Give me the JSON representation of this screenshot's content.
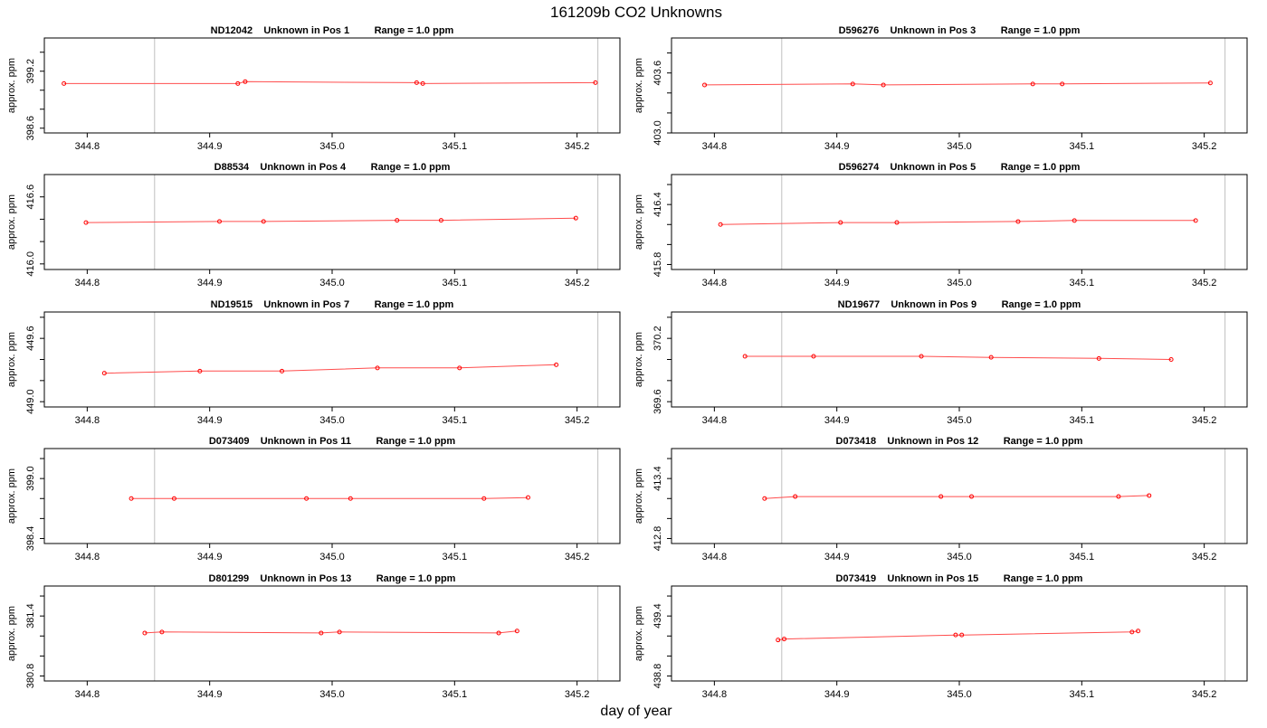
{
  "page": {
    "title": "161209b  CO2 Unknowns",
    "xlabel": "day of year",
    "colors": {
      "series": "#ff0000",
      "line": "#ff4d4d",
      "axis": "#000000",
      "vline": "#bfbfbf"
    }
  },
  "chart_data": [
    {
      "type": "line",
      "title": "ND12042    Unknown in Pos 1         Range = 1.0 ppm",
      "ylabel": "approx. ppm",
      "xlim": [
        344.765,
        345.235
      ],
      "ylim": [
        398.55,
        399.55
      ],
      "xticks": [
        344.8,
        344.9,
        345.0,
        345.1,
        345.2
      ],
      "xtick_labels": [
        "344.8",
        "344.9",
        "345.0",
        "345.1",
        "345.2"
      ],
      "yticks": [
        398.6,
        398.8,
        399.0,
        399.2,
        399.4
      ],
      "ytick_labels": [
        "398.6",
        "",
        "",
        "399.2",
        ""
      ],
      "vlines": [
        344.855,
        345.217
      ],
      "x": [
        344.781,
        344.923,
        344.929,
        345.069,
        345.074,
        345.215
      ],
      "y": [
        399.07,
        399.07,
        399.09,
        399.08,
        399.07,
        399.08
      ]
    },
    {
      "type": "line",
      "title": "D596276    Unknown in Pos 3         Range = 1.0 ppm",
      "ylabel": "approx. ppm",
      "xlim": [
        344.765,
        345.235
      ],
      "ylim": [
        403.0,
        403.95
      ],
      "xticks": [
        344.8,
        344.9,
        345.0,
        345.1,
        345.2
      ],
      "xtick_labels": [
        "344.8",
        "344.9",
        "345.0",
        "345.1",
        "345.2"
      ],
      "yticks": [
        403.0,
        403.2,
        403.4,
        403.6,
        403.8
      ],
      "ytick_labels": [
        "403.0",
        "",
        "",
        "403.6",
        ""
      ],
      "vlines": [
        344.855,
        345.217
      ],
      "x": [
        344.792,
        344.913,
        344.938,
        345.06,
        345.084,
        345.205
      ],
      "y": [
        403.48,
        403.49,
        403.48,
        403.49,
        403.49,
        403.5
      ]
    },
    {
      "type": "line",
      "title": "D88534    Unknown in Pos 4         Range = 1.0 ppm",
      "ylabel": "approx. ppm",
      "xlim": [
        344.765,
        345.235
      ],
      "ylim": [
        415.95,
        416.8
      ],
      "xticks": [
        344.8,
        344.9,
        345.0,
        345.1,
        345.2
      ],
      "xtick_labels": [
        "344.8",
        "344.9",
        "345.0",
        "345.1",
        "345.2"
      ],
      "yticks": [
        416.0,
        416.2,
        416.4,
        416.6
      ],
      "ytick_labels": [
        "416.0",
        "",
        "",
        "416.6"
      ],
      "vlines": [
        344.855,
        345.217
      ],
      "x": [
        344.799,
        344.908,
        344.944,
        345.053,
        345.089,
        345.199
      ],
      "y": [
        416.37,
        416.38,
        416.38,
        416.39,
        416.39,
        416.41
      ]
    },
    {
      "type": "line",
      "title": "D596274    Unknown in Pos 5         Range = 1.0 ppm",
      "ylabel": "approx. ppm",
      "xlim": [
        344.765,
        345.235
      ],
      "ylim": [
        415.75,
        416.7
      ],
      "xticks": [
        344.8,
        344.9,
        345.0,
        345.1,
        345.2
      ],
      "xtick_labels": [
        "344.8",
        "344.9",
        "345.0",
        "345.1",
        "345.2"
      ],
      "yticks": [
        415.8,
        416.0,
        416.2,
        416.4,
        416.6
      ],
      "ytick_labels": [
        "415.8",
        "",
        "",
        "416.4",
        ""
      ],
      "vlines": [
        344.855,
        345.217
      ],
      "x": [
        344.805,
        344.903,
        344.949,
        345.048,
        345.094,
        345.193
      ],
      "y": [
        416.2,
        416.22,
        416.22,
        416.23,
        416.24,
        416.24
      ]
    },
    {
      "type": "line",
      "title": "ND19515    Unknown in Pos 7         Range = 1.0 ppm",
      "ylabel": "approx. ppm",
      "xlim": [
        344.765,
        345.235
      ],
      "ylim": [
        448.95,
        449.85
      ],
      "xticks": [
        344.8,
        344.9,
        345.0,
        345.1,
        345.2
      ],
      "xtick_labels": [
        "344.8",
        "344.9",
        "345.0",
        "345.1",
        "345.2"
      ],
      "yticks": [
        449.0,
        449.2,
        449.4,
        449.6,
        449.8
      ],
      "ytick_labels": [
        "449.0",
        "",
        "",
        "449.6",
        ""
      ],
      "vlines": [
        344.855,
        345.217
      ],
      "x": [
        344.814,
        344.892,
        344.959,
        345.037,
        345.104,
        345.183
      ],
      "y": [
        449.27,
        449.29,
        449.29,
        449.32,
        449.32,
        449.35
      ]
    },
    {
      "type": "line",
      "title": "ND19677    Unknown in Pos 9         Range = 1.0 ppm",
      "ylabel": "approx. ppm",
      "xlim": [
        344.765,
        345.235
      ],
      "ylim": [
        369.55,
        370.45
      ],
      "xticks": [
        344.8,
        344.9,
        345.0,
        345.1,
        345.2
      ],
      "xtick_labels": [
        "344.8",
        "344.9",
        "345.0",
        "345.1",
        "345.2"
      ],
      "yticks": [
        369.6,
        369.8,
        370.0,
        370.2,
        370.4
      ],
      "ytick_labels": [
        "369.6",
        "",
        "",
        "370.2",
        ""
      ],
      "vlines": [
        344.855,
        345.217
      ],
      "x": [
        344.825,
        344.881,
        344.969,
        345.026,
        345.114,
        345.173
      ],
      "y": [
        370.03,
        370.03,
        370.03,
        370.02,
        370.01,
        370.0
      ]
    },
    {
      "type": "line",
      "title": "D073409    Unknown in Pos 11         Range = 1.0 ppm",
      "ylabel": "approx. ppm",
      "xlim": [
        344.765,
        345.235
      ],
      "ylim": [
        398.35,
        399.3
      ],
      "xticks": [
        344.8,
        344.9,
        345.0,
        345.1,
        345.2
      ],
      "xtick_labels": [
        "344.8",
        "344.9",
        "345.0",
        "345.1",
        "345.2"
      ],
      "yticks": [
        398.4,
        398.6,
        398.8,
        399.0,
        399.2
      ],
      "ytick_labels": [
        "398.4",
        "",
        "",
        "399.0",
        ""
      ],
      "vlines": [
        344.855,
        345.217
      ],
      "x": [
        344.836,
        344.871,
        344.979,
        345.015,
        345.124,
        345.16
      ],
      "y": [
        398.8,
        398.8,
        398.8,
        398.8,
        398.8,
        398.81
      ]
    },
    {
      "type": "line",
      "title": "D073418    Unknown in Pos 12         Range = 1.0 ppm",
      "ylabel": "approx. ppm",
      "xlim": [
        344.765,
        345.235
      ],
      "ylim": [
        412.75,
        413.7
      ],
      "xticks": [
        344.8,
        344.9,
        345.0,
        345.1,
        345.2
      ],
      "xtick_labels": [
        "344.8",
        "344.9",
        "345.0",
        "345.1",
        "345.2"
      ],
      "yticks": [
        412.8,
        413.0,
        413.2,
        413.4,
        413.6
      ],
      "ytick_labels": [
        "412.8",
        "",
        "",
        "413.4",
        ""
      ],
      "vlines": [
        344.855,
        345.217
      ],
      "x": [
        344.841,
        344.866,
        344.985,
        345.01,
        345.13,
        345.155
      ],
      "y": [
        413.2,
        413.22,
        413.22,
        413.22,
        413.22,
        413.23
      ]
    },
    {
      "type": "line",
      "title": "D801299    Unknown in Pos 13         Range = 1.0 ppm",
      "ylabel": "approx. ppm",
      "xlim": [
        344.765,
        345.235
      ],
      "ylim": [
        380.75,
        381.7
      ],
      "xticks": [
        344.8,
        344.9,
        345.0,
        345.1,
        345.2
      ],
      "xtick_labels": [
        "344.8",
        "344.9",
        "345.0",
        "345.1",
        "345.2"
      ],
      "yticks": [
        380.8,
        381.0,
        381.2,
        381.4,
        381.6
      ],
      "ytick_labels": [
        "380.8",
        "",
        "",
        "381.4",
        ""
      ],
      "vlines": [
        344.855,
        345.217
      ],
      "x": [
        344.847,
        344.861,
        344.991,
        345.006,
        345.136,
        345.151
      ],
      "y": [
        381.23,
        381.24,
        381.23,
        381.24,
        381.23,
        381.25
      ]
    },
    {
      "type": "line",
      "title": "D073419    Unknown in Pos 15         Range = 1.0 ppm",
      "ylabel": "approx. ppm",
      "xlim": [
        344.765,
        345.235
      ],
      "ylim": [
        438.75,
        439.7
      ],
      "xticks": [
        344.8,
        344.9,
        345.0,
        345.1,
        345.2
      ],
      "xtick_labels": [
        "344.8",
        "344.9",
        "345.0",
        "345.1",
        "345.2"
      ],
      "yticks": [
        438.8,
        439.0,
        439.2,
        439.4,
        439.6
      ],
      "ytick_labels": [
        "438.8",
        "",
        "",
        "439.4",
        ""
      ],
      "vlines": [
        344.855,
        345.217
      ],
      "x": [
        344.852,
        344.857,
        344.997,
        345.002,
        345.141,
        345.146
      ],
      "y": [
        439.16,
        439.17,
        439.21,
        439.21,
        439.24,
        439.25
      ]
    }
  ]
}
